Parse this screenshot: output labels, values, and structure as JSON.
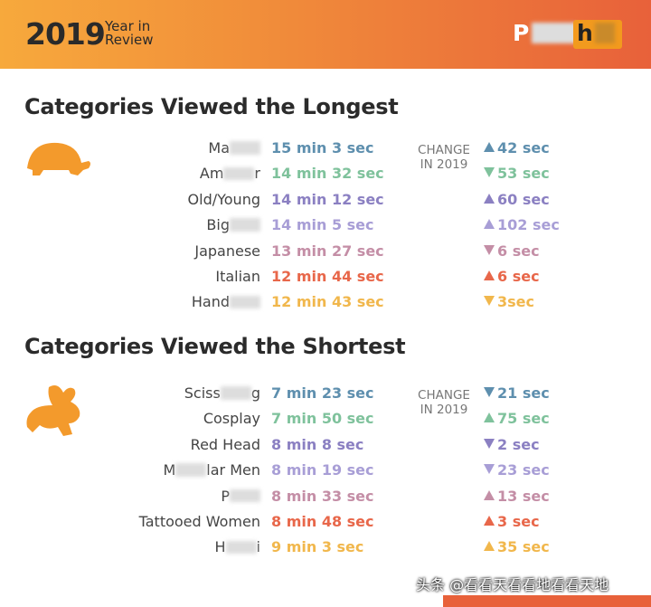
{
  "header": {
    "year": "2019",
    "subtitle": [
      "Year in",
      "Review"
    ],
    "logo": [
      "P",
      "h"
    ]
  },
  "sections": [
    {
      "title": "Categories Viewed the Longest",
      "change_head": [
        "CHANGE",
        "IN 2019"
      ],
      "rows": [
        {
          "label": [
            "Ma"
          ],
          "blurred_tail": true,
          "duration": "15 min 3 sec",
          "direction": "up",
          "change": "42 sec",
          "color": "#5e8fae"
        },
        {
          "label": [
            "Am",
            "r"
          ],
          "blurred_tail": false,
          "duration": "14 min 32 sec",
          "direction": "down",
          "change": "53 sec",
          "color": "#7fc29c"
        },
        {
          "label": [
            "Old/Young"
          ],
          "blurred_tail": false,
          "duration": "14 min 12 sec",
          "direction": "up",
          "change": "60 sec",
          "color": "#8b80c2"
        },
        {
          "label": [
            "Big"
          ],
          "blurred_tail": true,
          "duration": "14 min 5 sec",
          "direction": "up",
          "change": "102 sec",
          "color": "#a89ed6"
        },
        {
          "label": [
            "Japanese"
          ],
          "blurred_tail": false,
          "duration": "13 min 27 sec",
          "direction": "down",
          "change": "6 sec",
          "color": "#c48ea6"
        },
        {
          "label": [
            "Italian"
          ],
          "blurred_tail": false,
          "duration": "12 min 44 sec",
          "direction": "up",
          "change": "6 sec",
          "color": "#e8674a"
        },
        {
          "label": [
            "Hand"
          ],
          "blurred_tail": true,
          "duration": "12 min 43 sec",
          "direction": "down",
          "change": "3sec",
          "color": "#f1b74c"
        }
      ]
    },
    {
      "title": "Categories Viewed the Shortest",
      "change_head": [
        "CHANGE",
        "IN 2019"
      ],
      "rows": [
        {
          "label": [
            "Sciss",
            "g"
          ],
          "blurred_tail": false,
          "duration": "7 min 23 sec",
          "direction": "down",
          "change": "21 sec",
          "color": "#5e8fae"
        },
        {
          "label": [
            "Cosplay"
          ],
          "blurred_tail": false,
          "duration": "7 min 50 sec",
          "direction": "up",
          "change": "75 sec",
          "color": "#7fc29c"
        },
        {
          "label": [
            "Red Head"
          ],
          "blurred_tail": false,
          "duration": "8 min 8 sec",
          "direction": "down",
          "change": "2 sec",
          "color": "#8b80c2"
        },
        {
          "label": [
            "M",
            "lar Men"
          ],
          "blurred_tail": false,
          "duration": "8 min 19 sec",
          "direction": "down",
          "change": "23 sec",
          "color": "#a89ed6"
        },
        {
          "label": [
            "P"
          ],
          "blurred_tail": true,
          "duration": "8 min 33 sec",
          "direction": "up",
          "change": "13 sec",
          "color": "#c48ea6"
        },
        {
          "label": [
            "Tattooed Women"
          ],
          "blurred_tail": false,
          "duration": "8 min 48 sec",
          "direction": "up",
          "change": "3 sec",
          "color": "#e8674a"
        },
        {
          "label": [
            "H",
            "i"
          ],
          "blurred_tail": false,
          "duration": "9 min 3 sec",
          "direction": "up",
          "change": "35 sec",
          "color": "#f1b74c"
        }
      ]
    }
  ],
  "watermark": "头条 @看看天看看地看看天地"
}
